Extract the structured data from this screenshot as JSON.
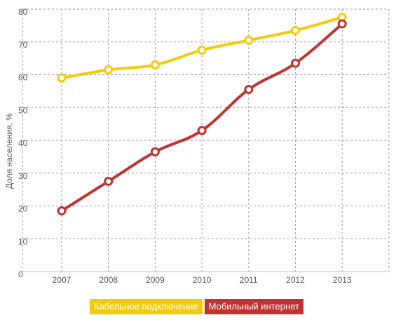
{
  "chart_data": {
    "type": "line",
    "title": "",
    "xlabel": "",
    "ylabel": "Доля населения, %",
    "categories": [
      "2007",
      "2008",
      "2009",
      "2010",
      "2011",
      "2012",
      "2013"
    ],
    "ylim": [
      0,
      80
    ],
    "yticks": [
      "0",
      "10",
      "20",
      "30",
      "40",
      "50",
      "60",
      "70",
      "80"
    ],
    "grid": true,
    "legend_position": "bottom",
    "series": [
      {
        "name": "Кабельное подключение",
        "color": "#f2cc0c",
        "values": [
          59,
          61.5,
          63,
          67.5,
          70.5,
          73.5,
          77.5
        ]
      },
      {
        "name": "Мобильный интернет",
        "color": "#c0332f",
        "values": [
          18.5,
          27.5,
          36.5,
          43,
          55.5,
          63.5,
          75.5
        ]
      }
    ]
  }
}
